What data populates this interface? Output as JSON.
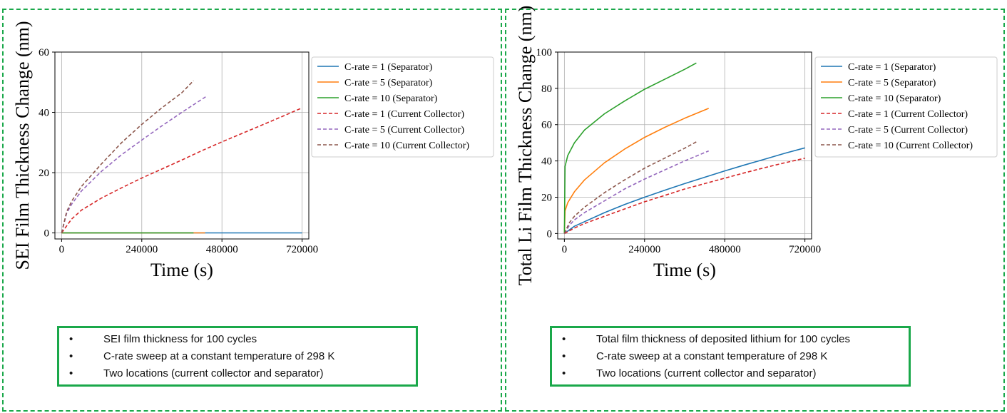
{
  "colors": {
    "panel_border": "#1aa84a",
    "series": [
      "#1f77b4",
      "#ff7f0e",
      "#2ca02c",
      "#d62728",
      "#9467bd",
      "#8c564b"
    ]
  },
  "chart_data": [
    {
      "type": "line",
      "title": "",
      "xlabel": "Time (s)",
      "ylabel": "SEI Film Thickness Change (nm)",
      "xlim": [
        -20000,
        740000
      ],
      "ylim": [
        -2,
        60
      ],
      "xticks": [
        0,
        240000,
        480000,
        720000
      ],
      "yticks": [
        0,
        20,
        40,
        60
      ],
      "grid": true,
      "legend": "outside-right",
      "series": [
        {
          "name": "C-rate = 1 (Separator)",
          "style": "solid",
          "color": "#1f77b4",
          "x": [
            0,
            720000
          ],
          "y": [
            0,
            0
          ]
        },
        {
          "name": "C-rate = 5 (Separator)",
          "style": "solid",
          "color": "#ff7f0e",
          "x": [
            0,
            430000
          ],
          "y": [
            0,
            0
          ]
        },
        {
          "name": "C-rate = 10 (Separator)",
          "style": "solid",
          "color": "#2ca02c",
          "x": [
            0,
            395000
          ],
          "y": [
            0,
            0
          ]
        },
        {
          "name": "C-rate = 1 (Current Collector)",
          "style": "dashed",
          "color": "#d62728",
          "x": [
            0,
            30000,
            60000,
            120000,
            180000,
            240000,
            300000,
            360000,
            420000,
            480000,
            540000,
            600000,
            660000,
            720000
          ],
          "y": [
            0,
            4.6,
            7.6,
            11.6,
            15.0,
            18.2,
            21.2,
            24.2,
            27.3,
            30.2,
            33.0,
            35.8,
            38.6,
            41.5
          ]
        },
        {
          "name": "C-rate = 5 (Current Collector)",
          "style": "dashed",
          "color": "#9467bd",
          "x": [
            0,
            15000,
            30000,
            60000,
            120000,
            180000,
            240000,
            300000,
            360000,
            432000
          ],
          "y": [
            0,
            6.5,
            9.5,
            14.0,
            20.5,
            26.0,
            30.8,
            35.5,
            40.0,
            45.2
          ]
        },
        {
          "name": "C-rate = 10 (Current Collector)",
          "style": "dashed",
          "color": "#8c564b",
          "x": [
            0,
            15000,
            30000,
            60000,
            120000,
            180000,
            240000,
            300000,
            360000,
            395000
          ],
          "y": [
            0,
            7.0,
            10.5,
            15.5,
            23.0,
            30.0,
            36.0,
            41.5,
            46.5,
            50.5
          ]
        }
      ]
    },
    {
      "type": "line",
      "title": "",
      "xlabel": "Time (s)",
      "ylabel": "Total Li Film Thickness Change (nm)",
      "xlim": [
        -20000,
        740000
      ],
      "ylim": [
        -3,
        100
      ],
      "xticks": [
        0,
        240000,
        480000,
        720000
      ],
      "yticks": [
        0,
        20,
        40,
        60,
        80,
        100
      ],
      "grid": true,
      "legend": "outside-right",
      "series": [
        {
          "name": "C-rate = 1 (Separator)",
          "style": "solid",
          "color": "#1f77b4",
          "x": [
            0,
            30000,
            60000,
            120000,
            180000,
            240000,
            300000,
            360000,
            420000,
            480000,
            540000,
            600000,
            660000,
            720000
          ],
          "y": [
            0,
            4.0,
            6.5,
            11.5,
            16.0,
            20.0,
            23.8,
            27.5,
            31.0,
            34.5,
            37.8,
            41.0,
            44.2,
            47.2
          ]
        },
        {
          "name": "C-rate = 5 (Separator)",
          "style": "solid",
          "color": "#ff7f0e",
          "x": [
            0,
            2000,
            10000,
            30000,
            60000,
            120000,
            180000,
            240000,
            300000,
            360000,
            432000
          ],
          "y": [
            0,
            12.5,
            17.0,
            23.0,
            29.5,
            39.0,
            46.5,
            53.0,
            58.5,
            63.5,
            69.0
          ]
        },
        {
          "name": "C-rate = 10 (Separator)",
          "style": "solid",
          "color": "#2ca02c",
          "x": [
            0,
            2000,
            10000,
            30000,
            60000,
            120000,
            180000,
            240000,
            300000,
            360000,
            395000
          ],
          "y": [
            0,
            37.0,
            43.0,
            50.0,
            57.0,
            66.0,
            73.0,
            79.5,
            85.0,
            90.5,
            94.0
          ]
        },
        {
          "name": "C-rate = 1 (Current Collector)",
          "style": "dashed",
          "color": "#d62728",
          "x": [
            0,
            30000,
            60000,
            120000,
            180000,
            240000,
            300000,
            360000,
            420000,
            480000,
            540000,
            600000,
            660000,
            720000
          ],
          "y": [
            0,
            3.0,
            5.5,
            9.5,
            13.5,
            17.5,
            21.0,
            24.5,
            27.5,
            30.5,
            33.5,
            36.3,
            39.0,
            41.5
          ]
        },
        {
          "name": "C-rate = 5 (Current Collector)",
          "style": "dashed",
          "color": "#9467bd",
          "x": [
            0,
            15000,
            30000,
            60000,
            120000,
            180000,
            240000,
            300000,
            360000,
            432000
          ],
          "y": [
            0,
            4.5,
            7.5,
            11.5,
            18.0,
            24.5,
            30.0,
            35.0,
            40.0,
            45.5
          ]
        },
        {
          "name": "C-rate = 10 (Current Collector)",
          "style": "dashed",
          "color": "#8c564b",
          "x": [
            0,
            15000,
            30000,
            60000,
            120000,
            180000,
            240000,
            300000,
            360000,
            395000
          ],
          "y": [
            0,
            6.0,
            9.5,
            14.5,
            22.5,
            29.5,
            36.0,
            41.5,
            47.0,
            50.5
          ]
        }
      ]
    }
  ],
  "notes_left": {
    "bullet": "•",
    "items": [
      "SEI film thickness for 100 cycles",
      "C-rate sweep at a constant temperature of 298 K",
      "Two locations (current collector and separator)"
    ]
  },
  "notes_right": {
    "bullet": "•",
    "items": [
      "Total film thickness of deposited lithium for 100 cycles",
      "C-rate sweep at a constant temperature of 298 K",
      "Two locations (current collector and separator)"
    ]
  }
}
